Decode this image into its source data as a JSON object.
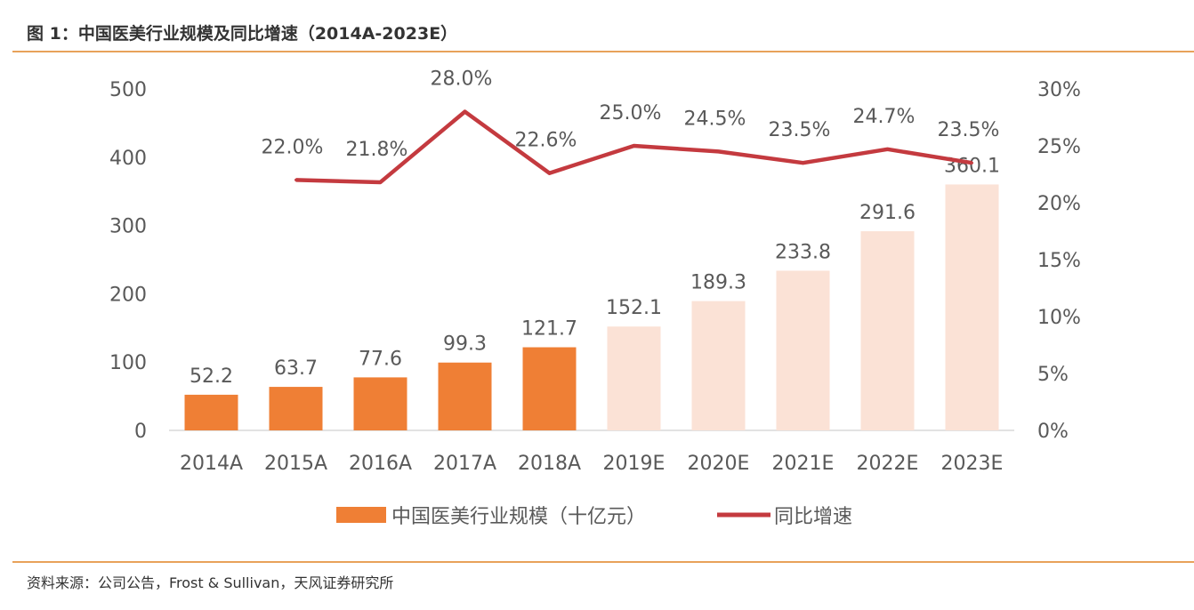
{
  "title": "图 1：中国医美行业规模及同比增速（2014A-2023E）",
  "source": "资料来源：公司公告，Frost & Sullivan，天风证券研究所",
  "colors": {
    "actual_bar": "#ef7f35",
    "estimate_bar": "#fbe2d6",
    "line": "#c43a3f",
    "rule": "#e8a25a"
  },
  "chart_data": {
    "type": "bar+line",
    "categories": [
      "2014A",
      "2015A",
      "2016A",
      "2017A",
      "2018A",
      "2019E",
      "2020E",
      "2021E",
      "2022E",
      "2023E"
    ],
    "series": [
      {
        "name": "中国医美行业规模（十亿元）",
        "type": "bar",
        "axis": "left",
        "values": [
          52.2,
          63.7,
          77.6,
          99.3,
          121.7,
          152.1,
          189.3,
          233.8,
          291.6,
          360.1
        ],
        "labels": [
          "52.2",
          "63.7",
          "77.6",
          "99.3",
          "121.7",
          "152.1",
          "189.3",
          "233.8",
          "291.6",
          "360.1"
        ],
        "estimate": [
          false,
          false,
          false,
          false,
          false,
          true,
          true,
          true,
          true,
          true
        ]
      },
      {
        "name": "同比增速",
        "type": "line",
        "axis": "right",
        "values": [
          null,
          22.0,
          21.8,
          28.0,
          22.6,
          25.0,
          24.5,
          23.5,
          24.7,
          23.5
        ],
        "labels": [
          "",
          "22.0%",
          "21.8%",
          "28.0%",
          "22.6%",
          "25.0%",
          "24.5%",
          "23.5%",
          "24.7%",
          "23.5%"
        ]
      }
    ],
    "left_axis": {
      "ylim": [
        0,
        500
      ],
      "ticks": [
        "0",
        "100",
        "200",
        "300",
        "400",
        "500"
      ]
    },
    "right_axis": {
      "ylim": [
        0,
        30
      ],
      "ticks": [
        "0%",
        "5%",
        "10%",
        "15%",
        "20%",
        "25%",
        "30%"
      ]
    },
    "grid": false,
    "legend_placement": "bottom"
  }
}
